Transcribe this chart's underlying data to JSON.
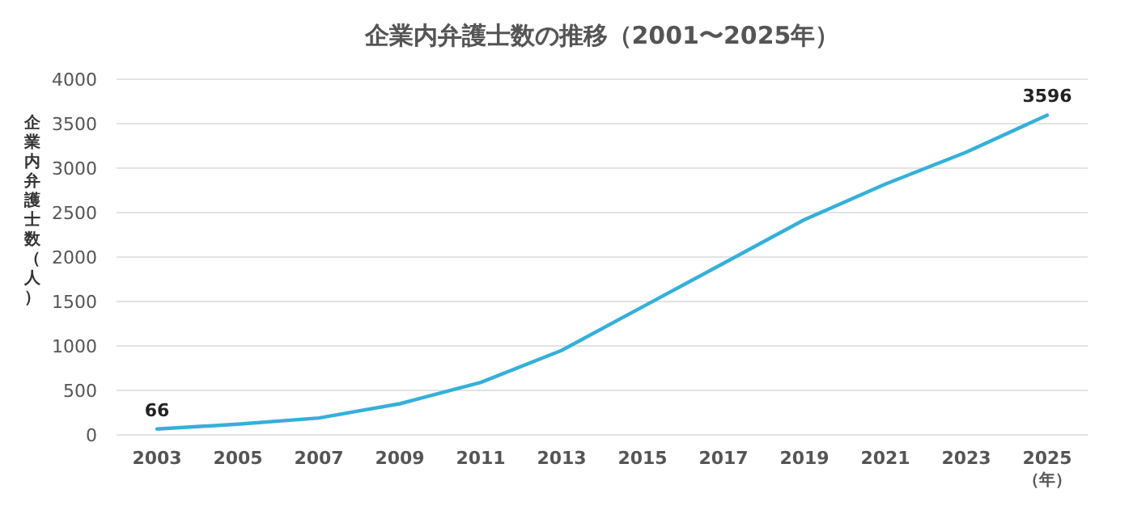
{
  "chart_data": {
    "type": "line",
    "title": "企業内弁護士数の推移（2001〜2025年）",
    "ylabel": "企業内弁護士数（人）",
    "xlabel": "（年）",
    "categories": [
      "2003",
      "2005",
      "2007",
      "2009",
      "2011",
      "2013",
      "2015",
      "2017",
      "2019",
      "2021",
      "2023",
      "2025"
    ],
    "series": [
      {
        "color": "#35b0d9",
        "values": [
          66,
          120,
          190,
          350,
          590,
          950,
          1440,
          1930,
          2420,
          2820,
          3180,
          3596
        ],
        "value_labels": [
          "66",
          null,
          null,
          null,
          null,
          null,
          null,
          null,
          null,
          null,
          null,
          "3596"
        ]
      }
    ],
    "ylim": [
      0,
      4000
    ],
    "yticks": [
      0,
      500,
      1000,
      1500,
      2000,
      2500,
      3000,
      3500,
      4000
    ],
    "grid": "y",
    "marker": "none",
    "line_style": "solid"
  }
}
